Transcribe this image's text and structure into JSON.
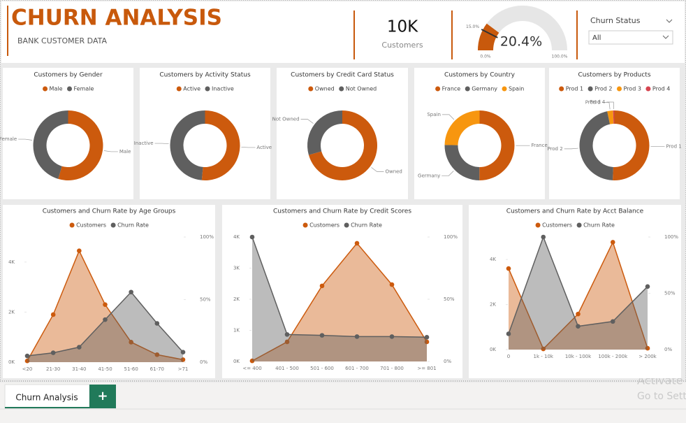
{
  "header": {
    "title": "CHURN ANALYSIS",
    "subtitle": "BANK CUSTOMER DATA"
  },
  "slicer": {
    "label": "Churn Status",
    "value": "All"
  },
  "tabs": [
    "Churn Analysis",
    "+"
  ],
  "watermark": [
    "Activate",
    "Go to Setti"
  ],
  "chart_data": [
    {
      "type": "card",
      "label": "Customers",
      "values": [
        10000
      ],
      "value_labels": [
        "10K"
      ]
    },
    {
      "type": "gauge",
      "values": [
        20.4
      ],
      "value_labels": [
        "20.4%"
      ],
      "color": "#c8590c",
      "ylim": [
        0,
        100
      ],
      "yticks": [
        {
          "value": 0,
          "label": "0.0%"
        },
        {
          "value": 100,
          "label": "100.0%"
        }
      ],
      "target": {
        "value": 15,
        "label": "15.0%"
      }
    },
    {
      "type": "donut",
      "title": "Customers by Gender",
      "categories": [
        "Male",
        "Female"
      ],
      "values": [
        54.6,
        45.4
      ],
      "colors": [
        "#cc5a0d",
        "#5f5f5f"
      ]
    },
    {
      "type": "donut",
      "title": "Customers by Activity Status",
      "categories": [
        "Active",
        "Inactive"
      ],
      "values": [
        51.5,
        48.5
      ],
      "colors": [
        "#cc5a0d",
        "#5f5f5f"
      ]
    },
    {
      "type": "donut",
      "title": "Customers by Credit Card Status",
      "categories": [
        "Owned",
        "Not Owned"
      ],
      "values": [
        70.6,
        29.4
      ],
      "colors": [
        "#cc5a0d",
        "#5f5f5f"
      ]
    },
    {
      "type": "donut",
      "title": "Customers by Country",
      "categories": [
        "France",
        "Germany",
        "Spain"
      ],
      "values": [
        50.1,
        25.1,
        24.8
      ],
      "colors": [
        "#cc5a0d",
        "#5f5f5f",
        "#f7960f"
      ]
    },
    {
      "type": "donut",
      "title": "Customers by Products",
      "categories": [
        "Prod 1",
        "Prod 2",
        "Prod 3",
        "Prod 4"
      ],
      "values": [
        50.8,
        45.9,
        2.7,
        0.6
      ],
      "colors": [
        "#cc5a0d",
        "#5f5f5f",
        "#f7960f",
        "#d64550"
      ]
    },
    {
      "type": "area",
      "title": "Customers and Churn Rate by Age Groups",
      "categories": [
        "<20",
        "21-30",
        "31-40",
        "41-50",
        "51-60",
        "61-70",
        ">71"
      ],
      "series": [
        {
          "name": "Customers",
          "color": "#cc5a0d",
          "values": [
            50,
            1900,
            4450,
            2300,
            800,
            300,
            100
          ]
        },
        {
          "name": "Churn Rate",
          "color": "#5f5f5f",
          "axis": "y2",
          "values": [
            5,
            7.5,
            12,
            34,
            56,
            31,
            8
          ]
        }
      ],
      "ylim": [
        0,
        5000
      ],
      "yticks": [
        {
          "value": 0,
          "label": "0K"
        },
        {
          "value": 2000,
          "label": "2K"
        },
        {
          "value": 4000,
          "label": "4K"
        }
      ],
      "y2lim": [
        0,
        100
      ],
      "y2ticks": [
        {
          "value": 0,
          "label": "0%"
        },
        {
          "value": 50,
          "label": "50%"
        },
        {
          "value": 100,
          "label": "100%"
        }
      ]
    },
    {
      "type": "area",
      "title": "Customers and Churn Rate by Credit Scores",
      "categories": [
        "<= 400",
        "401 - 500",
        "501 - 600",
        "601 - 700",
        "701 - 800",
        ">= 801"
      ],
      "series": [
        {
          "name": "Customers",
          "color": "#cc5a0d",
          "values": [
            20,
            630,
            2430,
            3800,
            2470,
            630
          ]
        },
        {
          "name": "Churn Rate",
          "color": "#5f5f5f",
          "axis": "y2",
          "values": [
            100,
            21.7,
            21,
            20,
            20,
            19.5
          ]
        }
      ],
      "ylim": [
        0,
        4000
      ],
      "yticks": [
        {
          "value": 0,
          "label": "0K"
        },
        {
          "value": 1000,
          "label": "1K"
        },
        {
          "value": 2000,
          "label": "2K"
        },
        {
          "value": 3000,
          "label": "3K"
        },
        {
          "value": 4000,
          "label": "4K"
        }
      ],
      "y2lim": [
        0,
        100
      ],
      "y2ticks": [
        {
          "value": 0,
          "label": "0%"
        },
        {
          "value": 50,
          "label": "50%"
        },
        {
          "value": 100,
          "label": "100%"
        }
      ]
    },
    {
      "type": "area",
      "title": "Customers and Churn Rate by Acct Balance",
      "categories": [
        "0",
        "1k - 10k",
        "10k - 100k",
        "100k - 200k",
        "> 200k"
      ],
      "series": [
        {
          "name": "Customers",
          "color": "#cc5a0d",
          "values": [
            3600,
            30,
            1580,
            4770,
            60
          ]
        },
        {
          "name": "Churn Rate",
          "color": "#5f5f5f",
          "axis": "y2",
          "values": [
            14,
            100,
            20.7,
            25,
            56
          ]
        }
      ],
      "ylim": [
        0,
        5000
      ],
      "yticks": [
        {
          "value": 0,
          "label": "0K"
        },
        {
          "value": 2000,
          "label": "2K"
        },
        {
          "value": 4000,
          "label": "4K"
        }
      ],
      "y2lim": [
        0,
        100
      ],
      "y2ticks": [
        {
          "value": 0,
          "label": "0%"
        },
        {
          "value": 50,
          "label": "50%"
        },
        {
          "value": 100,
          "label": "100%"
        }
      ]
    }
  ]
}
